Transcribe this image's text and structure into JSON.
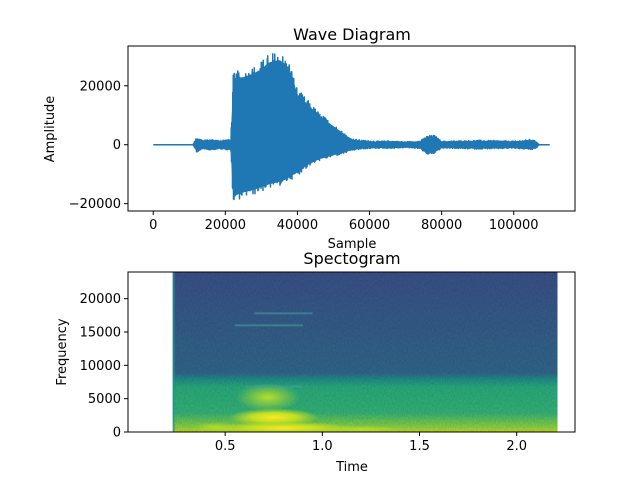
{
  "chart_data": [
    {
      "type": "line",
      "title": "Wave Diagram",
      "xlabel": "Sample",
      "ylabel": "Amplitude",
      "xlim": [
        -7000,
        117000
      ],
      "ylim": [
        -22500,
        33500
      ],
      "xticks": [
        0,
        20000,
        40000,
        60000,
        80000,
        100000
      ],
      "xtick_labels": [
        "0",
        "20000",
        "40000",
        "60000",
        "80000",
        "100000"
      ],
      "yticks": [
        -20000,
        0,
        20000
      ],
      "ytick_labels": [
        "−20000",
        "0",
        "20000"
      ],
      "line_color": "#1f77b4",
      "envelope": {
        "x": [
          0,
          11000,
          12000,
          14000,
          16000,
          18000,
          20000,
          21500,
          22200,
          23000,
          25000,
          28000,
          30000,
          32000,
          35000,
          37000,
          38000,
          40000,
          43000,
          46000,
          50000,
          53000,
          55000,
          58000,
          62000,
          66000,
          70000,
          74000,
          76000,
          78000,
          80000,
          84000,
          90000,
          95000,
          100000,
          105000,
          106500,
          107000,
          110000
        ],
        "upper": [
          0,
          0,
          2500,
          1500,
          1800,
          1500,
          1700,
          1800,
          24000,
          25000,
          25500,
          27000,
          28500,
          31000,
          32000,
          30000,
          28000,
          19000,
          15000,
          11000,
          7000,
          4000,
          2000,
          1500,
          1200,
          1300,
          1000,
          1300,
          3000,
          3200,
          1200,
          1300,
          1500,
          1400,
          1200,
          1800,
          1000,
          0,
          0
        ],
        "lower": [
          0,
          0,
          -2500,
          -1500,
          -1800,
          -1500,
          -1700,
          -1800,
          -20500,
          -19000,
          -18000,
          -17000,
          -16000,
          -15000,
          -14000,
          -13000,
          -12000,
          -10500,
          -7500,
          -5500,
          -4000,
          -3000,
          -2000,
          -1500,
          -1200,
          -1300,
          -1000,
          -1300,
          -3500,
          -3000,
          -1200,
          -1300,
          -1500,
          -1400,
          -1200,
          -1800,
          -1000,
          0,
          0
        ]
      },
      "grid": false
    },
    {
      "type": "heatmap",
      "title": "Spectogram",
      "xlabel": "Time",
      "ylabel": "Frequency",
      "xlim": [
        0,
        2.3
      ],
      "ylim": [
        0,
        24000
      ],
      "xticks": [
        0.5,
        1.0,
        1.5,
        2.0
      ],
      "xtick_labels": [
        "0.5",
        "1.0",
        "1.5",
        "2.0"
      ],
      "yticks": [
        0,
        5000,
        10000,
        15000,
        20000
      ],
      "ytick_labels": [
        "0",
        "5000",
        "10000",
        "15000",
        "20000"
      ],
      "data_time_range": [
        0.23,
        2.21
      ],
      "colormap": "viridis",
      "grid": false
    }
  ]
}
